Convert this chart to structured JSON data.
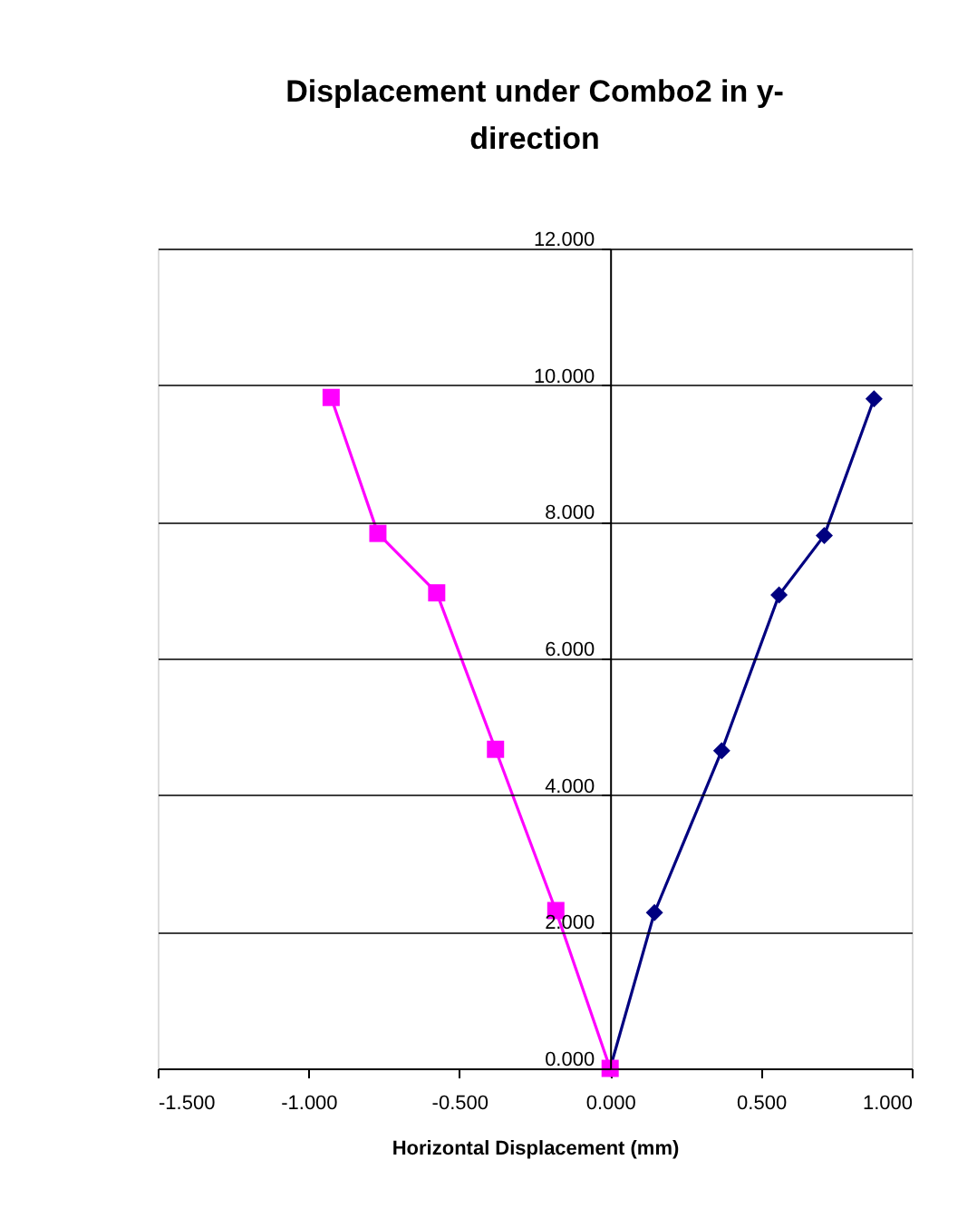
{
  "chart_data": {
    "type": "line",
    "title": "Displacement under Combo2 in y-direction",
    "xlabel": "Horizontal Displacement (mm)",
    "series": [
      {
        "color": "#000080",
        "marker": "diamond",
        "x": [
          0,
          0.147,
          0.37,
          0.56,
          0.71,
          0.875
        ],
        "values": [
          0,
          2.28,
          4.65,
          6.93,
          7.8,
          9.8
        ]
      },
      {
        "color": "#ff00ff",
        "marker": "square",
        "x": [
          0,
          -0.18,
          -0.38,
          -0.575,
          -0.77,
          -0.925
        ],
        "values": [
          0,
          2.31,
          4.67,
          6.96,
          7.83,
          9.82
        ]
      }
    ],
    "xlim": [
      -1.5,
      1
    ],
    "ylim": [
      0,
      12
    ],
    "xticks": [
      {
        "value": -1.5,
        "label": "-1.500"
      },
      {
        "value": -1,
        "label": "-1.000"
      },
      {
        "value": -0.5,
        "label": "-0.500"
      },
      {
        "value": 0,
        "label": "0.000"
      },
      {
        "value": 0.5,
        "label": "0.500"
      },
      {
        "value": 1,
        "label": "1.000"
      }
    ],
    "yticks": [
      {
        "value": 0,
        "label": "0.000"
      },
      {
        "value": 2,
        "label": "2.000"
      },
      {
        "value": 4,
        "label": "4.000"
      },
      {
        "value": 6,
        "label": "6.000"
      },
      {
        "value": 8,
        "label": "8.000"
      },
      {
        "value": 10,
        "label": "10.000"
      },
      {
        "value": 12,
        "label": "12.000"
      }
    ],
    "grid": "y",
    "line_style": "solid"
  }
}
